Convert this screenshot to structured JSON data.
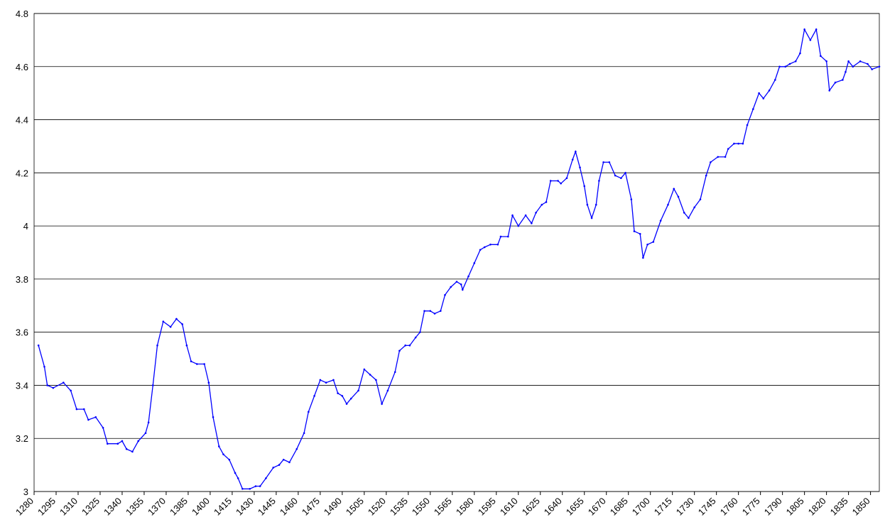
{
  "chart_data": {
    "type": "line",
    "x": [
      1283,
      1287,
      1289,
      1293,
      1300,
      1305,
      1309,
      1314,
      1317,
      1322,
      1327,
      1330,
      1337,
      1340,
      1343,
      1347,
      1351,
      1356,
      1358,
      1361,
      1364,
      1368,
      1373,
      1377,
      1381,
      1384,
      1387,
      1391,
      1396,
      1399,
      1402,
      1406,
      1409,
      1413,
      1417,
      1419,
      1422,
      1427,
      1431,
      1434,
      1438,
      1443,
      1447,
      1450,
      1454,
      1459,
      1464,
      1467,
      1471,
      1475,
      1479,
      1484,
      1487,
      1490,
      1493,
      1496,
      1501,
      1505,
      1509,
      1513,
      1517,
      1521,
      1526,
      1529,
      1533,
      1536,
      1540,
      1543,
      1546,
      1550,
      1553,
      1557,
      1560,
      1564,
      1568,
      1571,
      1572,
      1576,
      1580,
      1584,
      1587,
      1591,
      1596,
      1598,
      1603,
      1606,
      1610,
      1615,
      1619,
      1622,
      1626,
      1629,
      1632,
      1637,
      1639,
      1643,
      1647,
      1649,
      1652,
      1655,
      1657,
      1660,
      1663,
      1665,
      1668,
      1672,
      1676,
      1680,
      1683,
      1687,
      1689,
      1693,
      1695,
      1698,
      1702,
      1707,
      1712,
      1716,
      1719,
      1723,
      1726,
      1730,
      1734,
      1738,
      1741,
      1746,
      1751,
      1753,
      1757,
      1760,
      1763,
      1766,
      1770,
      1774,
      1777,
      1781,
      1785,
      1788,
      1792,
      1795,
      1799,
      1802,
      1805,
      1809,
      1813,
      1816,
      1820,
      1822,
      1826,
      1831,
      1833,
      1835,
      1838,
      1843,
      1848,
      1851,
      1856
    ],
    "series": [
      {
        "color": "#0000ff",
        "values": [
          3.55,
          3.47,
          3.4,
          3.39,
          3.41,
          3.38,
          3.31,
          3.31,
          3.27,
          3.28,
          3.24,
          3.18,
          3.18,
          3.19,
          3.16,
          3.15,
          3.19,
          3.22,
          3.26,
          3.4,
          3.55,
          3.64,
          3.62,
          3.65,
          3.63,
          3.55,
          3.49,
          3.48,
          3.48,
          3.41,
          3.28,
          3.17,
          3.14,
          3.12,
          3.07,
          3.05,
          3.01,
          3.01,
          3.02,
          3.02,
          3.05,
          3.09,
          3.1,
          3.12,
          3.11,
          3.16,
          3.22,
          3.3,
          3.36,
          3.42,
          3.41,
          3.42,
          3.37,
          3.36,
          3.33,
          3.35,
          3.38,
          3.46,
          3.44,
          3.42,
          3.33,
          3.38,
          3.45,
          3.53,
          3.55,
          3.55,
          3.58,
          3.6,
          3.68,
          3.68,
          3.67,
          3.68,
          3.74,
          3.77,
          3.79,
          3.78,
          3.76,
          3.81,
          3.86,
          3.91,
          3.92,
          3.93,
          3.93,
          3.96,
          3.96,
          4.04,
          4.0,
          4.04,
          4.01,
          4.05,
          4.08,
          4.09,
          4.17,
          4.17,
          4.16,
          4.18,
          4.25,
          4.28,
          4.22,
          4.15,
          4.08,
          4.03,
          4.08,
          4.17,
          4.24,
          4.24,
          4.19,
          4.18,
          4.2,
          4.1,
          3.98,
          3.97,
          3.88,
          3.93,
          3.94,
          4.02,
          4.08,
          4.14,
          4.11,
          4.05,
          4.03,
          4.07,
          4.1,
          4.19,
          4.24,
          4.26,
          4.26,
          4.29,
          4.31,
          4.31,
          4.31,
          4.38,
          4.44,
          4.5,
          4.48,
          4.51,
          4.55,
          4.6,
          4.6,
          4.61,
          4.62,
          4.65,
          4.74,
          4.7,
          4.74,
          4.64,
          4.62,
          4.51,
          4.54,
          4.55,
          4.58,
          4.62,
          4.6,
          4.62,
          4.61,
          4.59,
          4.6
        ]
      }
    ],
    "xlim": [
      1280,
      1856
    ],
    "xticks": [
      1280,
      1295,
      1310,
      1325,
      1340,
      1355,
      1370,
      1385,
      1400,
      1415,
      1430,
      1445,
      1460,
      1475,
      1490,
      1505,
      1520,
      1535,
      1550,
      1565,
      1580,
      1595,
      1610,
      1625,
      1640,
      1655,
      1670,
      1685,
      1700,
      1715,
      1730,
      1745,
      1760,
      1775,
      1790,
      1805,
      1820,
      1835,
      1850
    ],
    "ylim": [
      3,
      4.8
    ],
    "yticks": [
      3,
      3.2,
      3.4,
      3.6,
      3.8,
      4,
      4.2,
      4.4,
      4.6,
      4.8
    ],
    "grid": true
  }
}
